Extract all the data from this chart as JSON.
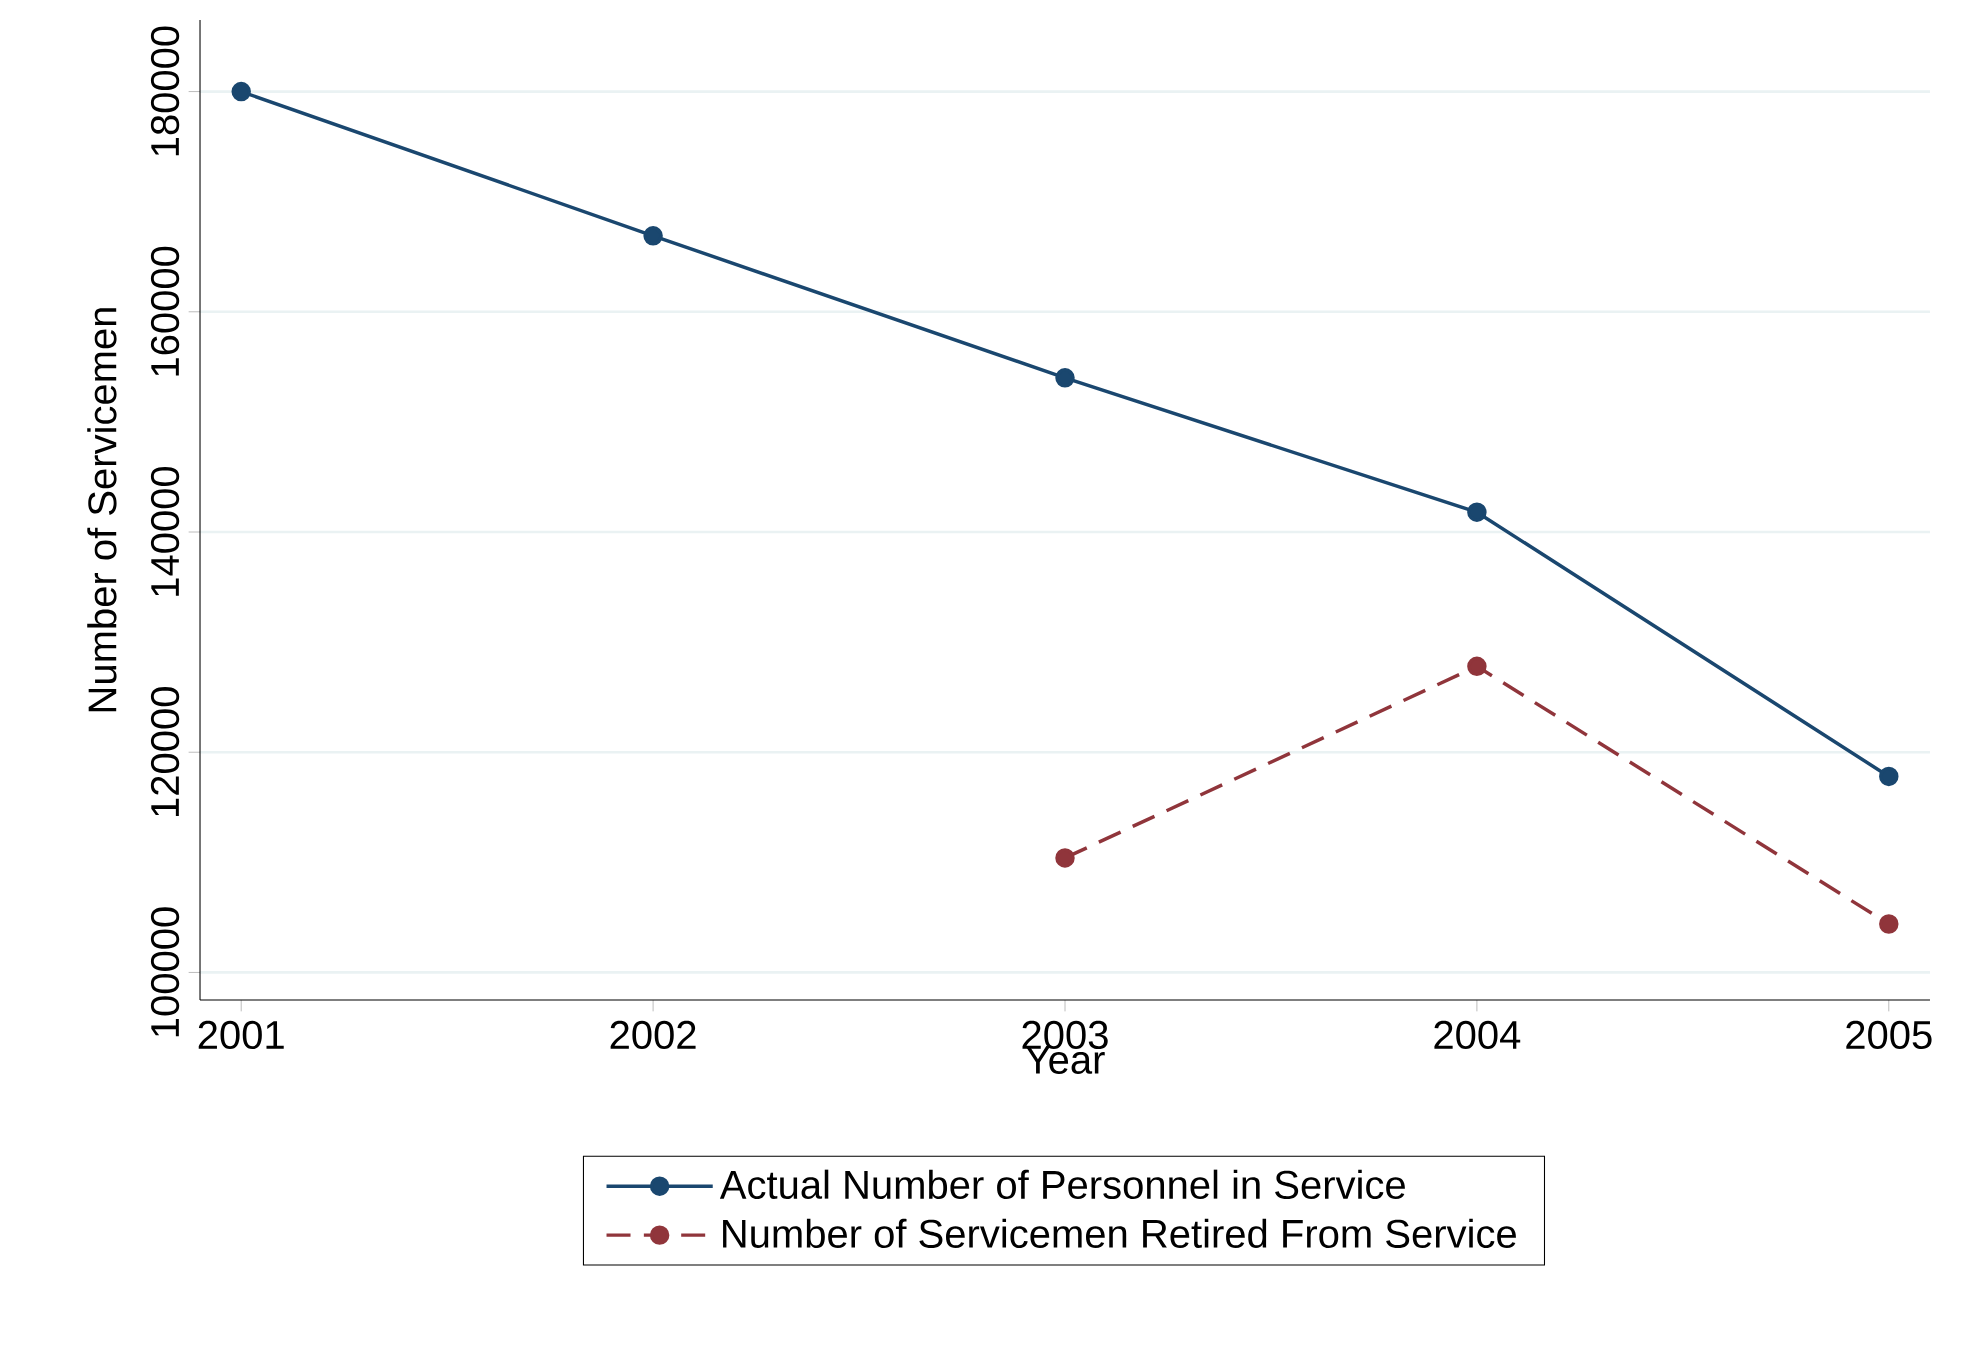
{
  "chart_data": {
    "type": "line",
    "xlabel": "Year",
    "ylabel": "Number of Servicemen",
    "x": [
      2001,
      2002,
      2003,
      2004,
      2005
    ],
    "series": [
      {
        "name": "Actual Number of Personnel in Service",
        "color": "#1a476f",
        "line_style": "solid",
        "values": [
          180000,
          166900,
          154000,
          141800,
          117800
        ]
      },
      {
        "name": "Number of Servicemen Retired From Service",
        "color": "#90353b",
        "line_style": "dashed",
        "values": [
          null,
          null,
          110400,
          127800,
          104400
        ]
      }
    ],
    "xlim": [
      2000.9,
      2005.1
    ],
    "ylim": [
      97500,
      186500
    ],
    "xticks": [
      2001,
      2002,
      2003,
      2004,
      2005
    ],
    "yticks": [
      100000,
      120000,
      140000,
      160000,
      180000
    ],
    "grid": "y",
    "legend": "bottom",
    "marker": "circle"
  }
}
